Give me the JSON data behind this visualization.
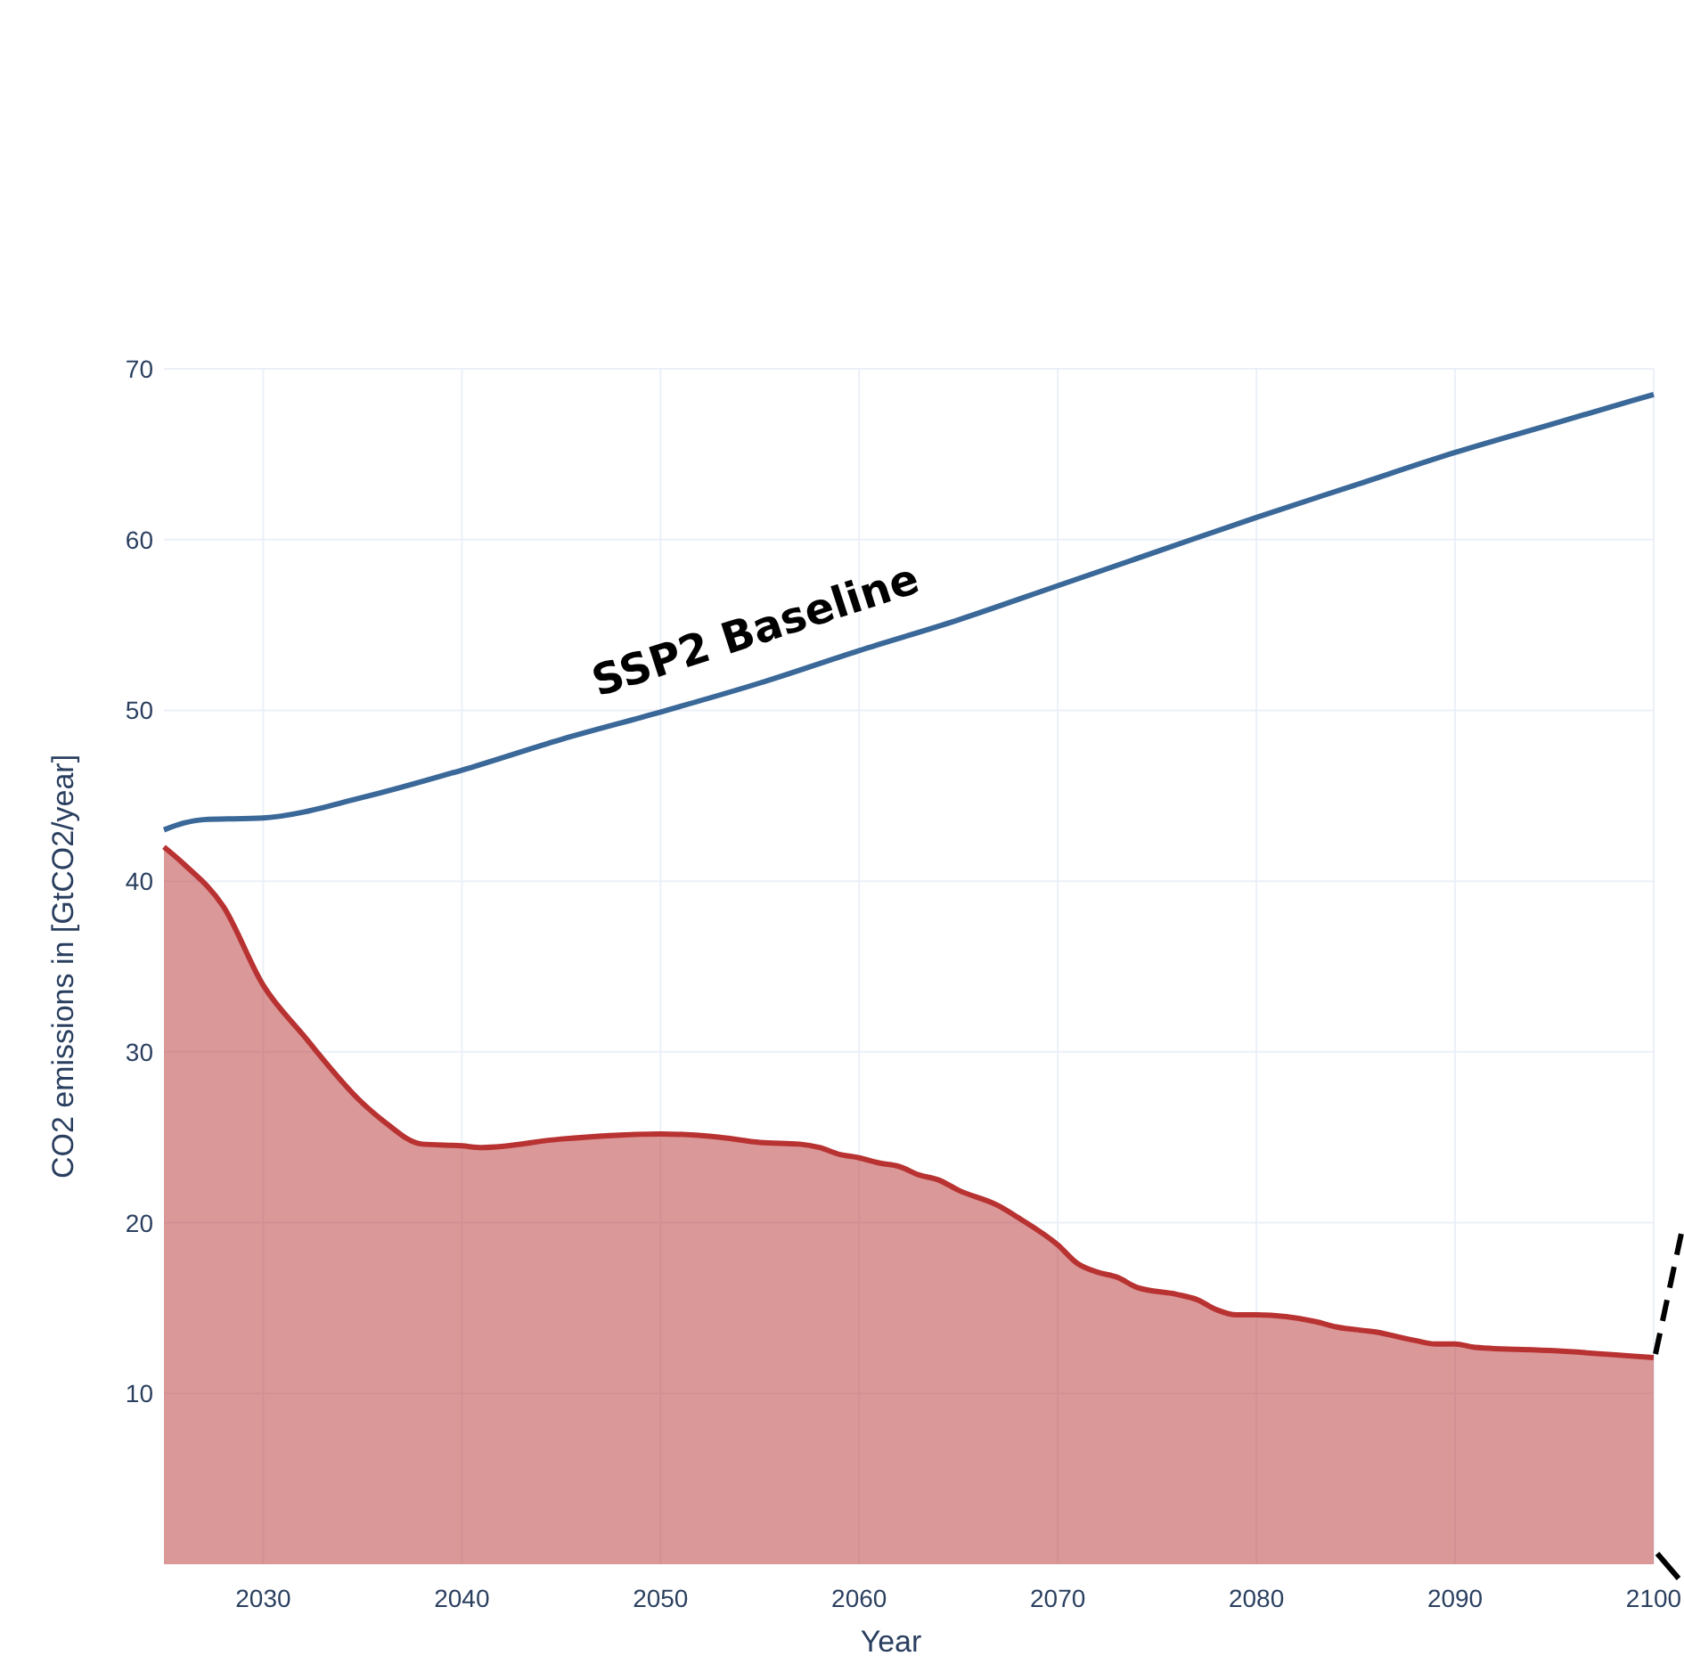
{
  "chart_data": {
    "type": "line",
    "xlabel": "Year",
    "ylabel": "CO2 emissions in [GtCO2/year]",
    "xlim": [
      2025,
      2100
    ],
    "xticks": [
      2030,
      2040,
      2050,
      2060,
      2070,
      2080,
      2090,
      2100
    ],
    "ylim": [
      0,
      70
    ],
    "yticks": [
      10,
      20,
      30,
      40,
      50,
      60,
      70
    ],
    "grid": true,
    "series": [
      {
        "name": "SSP2 Baseline",
        "color": "#3a6898",
        "x": [
          2025,
          2026,
          2027,
          2030,
          2035,
          2040,
          2045,
          2050,
          2055,
          2060,
          2065,
          2070,
          2075,
          2080,
          2085,
          2090,
          2095,
          2100
        ],
        "values": [
          43.0,
          43.4,
          43.6,
          43.7,
          44.9,
          46.5,
          48.3,
          49.9,
          51.6,
          53.5,
          55.3,
          57.3,
          59.3,
          61.3,
          63.2,
          65.1,
          66.8,
          68.5
        ]
      },
      {
        "type": "area",
        "color": "#b83232",
        "x": [
          2025,
          2026,
          2028,
          2030,
          2032,
          2035,
          2036,
          2038,
          2040,
          2041,
          2045,
          2050,
          2053,
          2055,
          2057,
          2058,
          2059,
          2060,
          2061,
          2062,
          2063,
          2064,
          2065,
          2067,
          2068,
          2070,
          2071,
          2072,
          2073,
          2074,
          2076,
          2077,
          2078,
          2079,
          2080,
          2083,
          2084,
          2086,
          2088,
          2089,
          2090,
          2091,
          2095,
          2100
        ],
        "values": [
          42,
          41,
          38.5,
          33.9,
          31,
          27,
          26,
          24.6,
          24.5,
          24.4,
          24.9,
          25.2,
          25,
          24.7,
          24.6,
          24.4,
          24,
          23.8,
          23.5,
          23.3,
          22.8,
          22.5,
          21.9,
          21,
          20.3,
          18.7,
          17.6,
          17.1,
          16.8,
          16.2,
          15.8,
          15.5,
          14.9,
          14.6,
          14.6,
          14.2,
          13.9,
          13.6,
          13.1,
          12.9,
          12.9,
          12.7,
          12.5,
          12.1
        ]
      }
    ]
  }
}
